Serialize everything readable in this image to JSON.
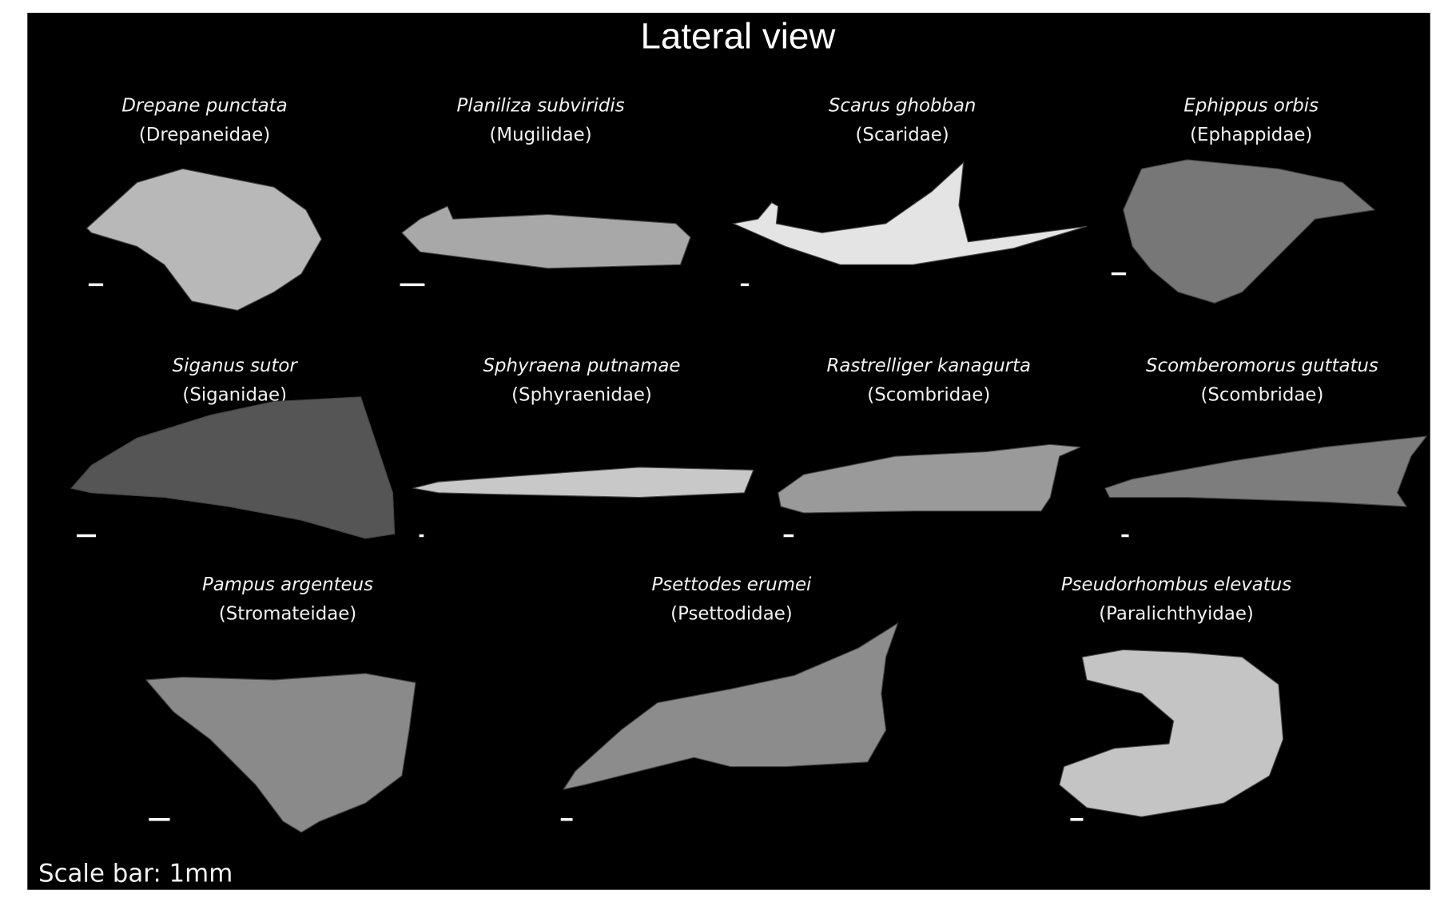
{
  "title": "Lateral view",
  "scale_note": "Scale bar: 1mm",
  "specimens": [
    {
      "species": "Drepane punctata",
      "family": "(Drepaneidae)",
      "tone": "#b8b8b8"
    },
    {
      "species": "Planiliza subviridis",
      "family": "(Mugilidae)",
      "tone": "#a8a8a8"
    },
    {
      "species": "Scarus ghobban",
      "family": "(Scaridae)",
      "tone": "#e4e4e4"
    },
    {
      "species": "Ephippus orbis",
      "family": "(Ephappidae)",
      "tone": "#777777"
    },
    {
      "species": "Siganus sutor",
      "family": "(Siganidae)",
      "tone": "#555555"
    },
    {
      "species": "Sphyraena putnamae",
      "family": "(Sphyraenidae)",
      "tone": "#c8c8c8"
    },
    {
      "species": "Rastrelliger kanagurta",
      "family": "(Scombridae)",
      "tone": "#9a9a9a"
    },
    {
      "species": "Scomberomorus guttatus",
      "family": "(Scombridae)",
      "tone": "#7d7d7d"
    },
    {
      "species": "Pampus argenteus",
      "family": "(Stromateidae)",
      "tone": "#8a8a8a"
    },
    {
      "species": "Psettodes erumei",
      "family": "(Psettodidae)",
      "tone": "#8c8c8c"
    },
    {
      "species": "Pseudorhombus elevatus",
      "family": "(Paralichthyidae)",
      "tone": "#c4c4c4"
    }
  ]
}
